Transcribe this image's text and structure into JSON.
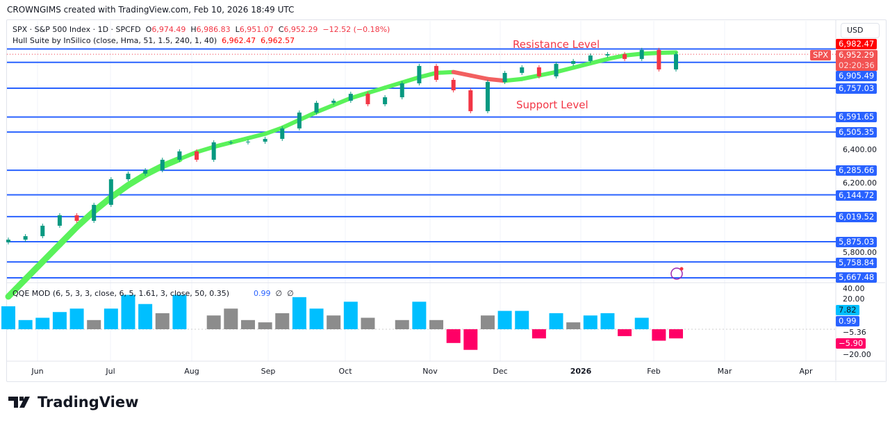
{
  "credit": "CROWNGIMS created with TradingView.com, Feb 10, 2026 18:49 UTC",
  "symbol_line": {
    "name": "SPX · S&P 500 Index · 1D · SPCFD",
    "o_label": "O",
    "o": "6,974.49",
    "h_label": "H",
    "h": "6,986.83",
    "l_label": "L",
    "l": "6,951.07",
    "c_label": "C",
    "c": "6,952.29",
    "change": "−12.52 (−0.18%)"
  },
  "hull_line": {
    "name": "Hull Suite by InSilico (close, Hma, 51, 1.5, 240, 1, 40)",
    "v1": "6,962.47",
    "v2": "6,962.57"
  },
  "qqe_line": {
    "name": "QQE MOD (6, 5, 3, 3, close, 6, 5, 1.61, 3, close, 50, 0.35)",
    "v": "0.99",
    "s1": "∅",
    "s2": "∅"
  },
  "currency": "USD",
  "annotations": {
    "resistance": "Resistance Level",
    "support": "Support Level"
  },
  "price_tag": {
    "symbol": "SPX",
    "price": "6,952.29",
    "countdown": "02:20:36"
  },
  "colors": {
    "up": "#089981",
    "down": "#f23645",
    "level": "#2962ff",
    "hull_up": "#5af25a",
    "hull_down": "#f26060",
    "qqe_blue": "#00bfff",
    "qqe_gray": "#8c8c8c",
    "qqe_red": "#ff0066"
  },
  "chart_data": {
    "type": "candlestick",
    "levels": [
      6982.47,
      6905.49,
      6757.03,
      6591.65,
      6505.35,
      6285.66,
      6144.72,
      6019.52,
      5875.03,
      5758.84,
      5667.48
    ],
    "level_labels": [
      "6,982.47",
      "6,905.49",
      "6,757.03",
      "6,591.65",
      "6,505.35",
      "6,285.66",
      "6,144.72",
      "6,019.52",
      "5,875.03",
      "5,758.84",
      "5,667.48"
    ],
    "y_ticks": [
      "6,400.00",
      "6,200.00",
      "5,800.00"
    ],
    "x_ticks": [
      "Jun",
      "Jul",
      "Aug",
      "Sep",
      "Oct",
      "Nov",
      "Dec",
      "2026",
      "Feb",
      "Mar",
      "Apr"
    ],
    "closes": [
      5887,
      5907,
      5967,
      6027,
      5995,
      6087,
      6234,
      6266,
      6286,
      6346,
      6394,
      6346,
      6446,
      6446,
      6450,
      6466,
      6526,
      6617,
      6673,
      6685,
      6725,
      6665,
      6705,
      6785,
      6885,
      6805,
      6745,
      6625,
      6793,
      6845,
      6877,
      6825,
      6897,
      6913,
      6945,
      6953,
      6925,
      6977,
      6865,
      6952.29
    ],
    "hull": [
      5560,
      5660,
      5760,
      5860,
      5960,
      6050,
      6130,
      6200,
      6260,
      6310,
      6350,
      6390,
      6420,
      6445,
      6470,
      6495,
      6530,
      6575,
      6620,
      6660,
      6700,
      6730,
      6760,
      6790,
      6820,
      6845,
      6850,
      6830,
      6810,
      6800,
      6810,
      6830,
      6850,
      6875,
      6900,
      6925,
      6945,
      6955,
      6960,
      6962.5
    ],
    "hull_dir": [
      "u",
      "u",
      "u",
      "u",
      "u",
      "u",
      "u",
      "u",
      "u",
      "u",
      "u",
      "u",
      "u",
      "u",
      "u",
      "u",
      "u",
      "u",
      "u",
      "u",
      "u",
      "u",
      "u",
      "u",
      "u",
      "u",
      "d",
      "d",
      "d",
      "u",
      "u",
      "u",
      "u",
      "u",
      "u",
      "u",
      "u",
      "u",
      "u",
      "u"
    ],
    "qqe_axis": [
      "40.00",
      "20.00",
      "7.82",
      "0.99",
      "−5.36",
      "−5.90",
      "−20.00"
    ],
    "qqe": [
      20,
      8,
      10,
      15,
      18,
      8,
      18,
      30,
      22,
      14,
      30,
      0,
      12,
      18,
      8,
      6,
      14,
      28,
      18,
      12,
      24,
      10,
      0,
      8,
      24,
      8,
      -12,
      -18,
      12,
      16,
      16,
      -8,
      14,
      6,
      12,
      14,
      -6,
      10,
      -10,
      -8
    ],
    "qqe_color": [
      "b",
      "b",
      "b",
      "b",
      "b",
      "g",
      "b",
      "b",
      "b",
      "g",
      "b",
      "g",
      "g",
      "g",
      "g",
      "g",
      "g",
      "b",
      "b",
      "g",
      "b",
      "g",
      "g",
      "g",
      "b",
      "g",
      "r",
      "r",
      "g",
      "b",
      "b",
      "r",
      "b",
      "g",
      "b",
      "b",
      "r",
      "b",
      "r",
      "r"
    ]
  },
  "brand": "TradingView"
}
